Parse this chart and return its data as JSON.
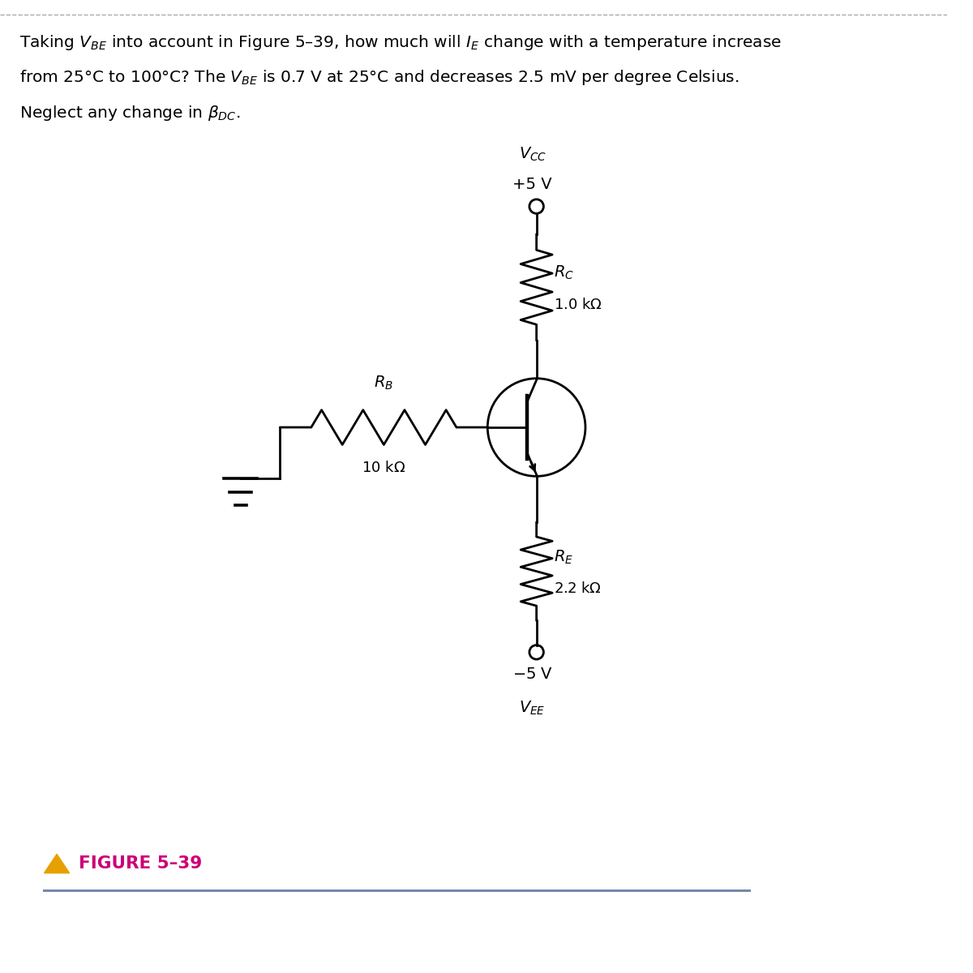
{
  "bg_color": "#ffffff",
  "text_color": "#000000",
  "line_color": "#000000",
  "figure_label_color": "#cc0077",
  "triangle_color": "#e6a000",
  "figure_label": "FIGURE 5–39"
}
